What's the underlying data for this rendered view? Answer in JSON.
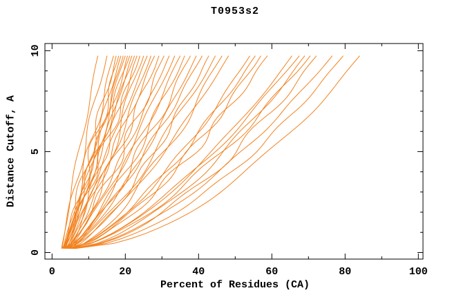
{
  "chart_data": {
    "type": "line",
    "title": "T0953s2",
    "xlabel": "Percent of Residues (CA)",
    "ylabel": "Distance Cutoff, A",
    "x_axis": {
      "min": 0,
      "max": 100,
      "minor_tick_step": 10,
      "major_tick_step": 20,
      "tick_labels": [
        "0",
        "20",
        "40",
        "60",
        "80",
        "100"
      ],
      "frame_min": -1.9,
      "frame_max": 101.9
    },
    "y_axis": {
      "min": 0,
      "max": 10,
      "minor_tick_step": 1,
      "major_tick_step": 5,
      "tick_labels": [
        "0",
        "5",
        "10"
      ],
      "frame_min": -0.33,
      "frame_max": 10.36
    },
    "grid": false,
    "legend": "none",
    "series_color": "#f28220",
    "axis_color": "#000000",
    "background_color": "#ffffff",
    "cutoff_range": [
      0.2,
      9.75
    ],
    "series_note": "each curve = one predicted model; x(cutoff) = start_percent + (top_percent - start_percent) * ((cutoff-0.2)/9.55)^shape_power",
    "series": [
      {
        "start_percent": 2.6,
        "top_percent": 12.5,
        "shape_power": 1.05
      },
      {
        "start_percent": 2.7,
        "top_percent": 15.0,
        "shape_power": 1.1
      },
      {
        "start_percent": 3.0,
        "top_percent": 16.8,
        "shape_power": 0.95
      },
      {
        "start_percent": 3.4,
        "top_percent": 17.5,
        "shape_power": 1.0
      },
      {
        "start_percent": 2.8,
        "top_percent": 18.2,
        "shape_power": 0.9
      },
      {
        "start_percent": 3.8,
        "top_percent": 18.8,
        "shape_power": 1.05
      },
      {
        "start_percent": 3.2,
        "top_percent": 19.4,
        "shape_power": 0.92
      },
      {
        "start_percent": 4.2,
        "top_percent": 20.0,
        "shape_power": 1.0
      },
      {
        "start_percent": 2.9,
        "top_percent": 20.6,
        "shape_power": 0.88
      },
      {
        "start_percent": 3.6,
        "top_percent": 21.2,
        "shape_power": 1.02
      },
      {
        "start_percent": 4.0,
        "top_percent": 21.8,
        "shape_power": 0.94
      },
      {
        "start_percent": 3.1,
        "top_percent": 22.5,
        "shape_power": 1.0
      },
      {
        "start_percent": 4.4,
        "top_percent": 23.2,
        "shape_power": 0.9
      },
      {
        "start_percent": 3.3,
        "top_percent": 24.0,
        "shape_power": 0.97
      },
      {
        "start_percent": 4.8,
        "top_percent": 25.0,
        "shape_power": 0.88
      },
      {
        "start_percent": 3.5,
        "top_percent": 26.0,
        "shape_power": 0.95
      },
      {
        "start_percent": 4.1,
        "top_percent": 27.0,
        "shape_power": 0.85
      },
      {
        "start_percent": 3.7,
        "top_percent": 28.0,
        "shape_power": 0.92
      },
      {
        "start_percent": 4.5,
        "top_percent": 29.2,
        "shape_power": 0.88
      },
      {
        "start_percent": 3.9,
        "top_percent": 30.6,
        "shape_power": 0.82
      },
      {
        "start_percent": 4.6,
        "top_percent": 32.0,
        "shape_power": 0.86
      },
      {
        "start_percent": 3.4,
        "top_percent": 33.5,
        "shape_power": 0.78
      },
      {
        "start_percent": 4.9,
        "top_percent": 35.0,
        "shape_power": 0.82
      },
      {
        "start_percent": 3.6,
        "top_percent": 36.2,
        "shape_power": 0.75
      },
      {
        "start_percent": 5.2,
        "top_percent": 37.8,
        "shape_power": 0.8
      },
      {
        "start_percent": 4.2,
        "top_percent": 39.4,
        "shape_power": 0.74
      },
      {
        "start_percent": 3.8,
        "top_percent": 41.0,
        "shape_power": 0.78
      },
      {
        "start_percent": 5.0,
        "top_percent": 42.8,
        "shape_power": 0.72
      },
      {
        "start_percent": 4.4,
        "top_percent": 44.6,
        "shape_power": 0.76
      },
      {
        "start_percent": 5.5,
        "top_percent": 46.4,
        "shape_power": 0.7
      },
      {
        "start_percent": 4.0,
        "top_percent": 48.2,
        "shape_power": 0.74
      },
      {
        "start_percent": 4.7,
        "top_percent": 54.0,
        "shape_power": 0.68
      },
      {
        "start_percent": 5.3,
        "top_percent": 55.5,
        "shape_power": 0.72
      },
      {
        "start_percent": 4.3,
        "top_percent": 57.0,
        "shape_power": 0.66
      },
      {
        "start_percent": 5.8,
        "top_percent": 58.8,
        "shape_power": 0.7
      },
      {
        "start_percent": 4.6,
        "top_percent": 65.5,
        "shape_power": 0.64
      },
      {
        "start_percent": 5.1,
        "top_percent": 67.5,
        "shape_power": 0.68
      },
      {
        "start_percent": 5.6,
        "top_percent": 69.0,
        "shape_power": 0.62
      },
      {
        "start_percent": 4.8,
        "top_percent": 70.5,
        "shape_power": 0.66
      },
      {
        "start_percent": 6.0,
        "top_percent": 72.2,
        "shape_power": 0.6
      },
      {
        "start_percent": 5.4,
        "top_percent": 76.5,
        "shape_power": 0.62
      },
      {
        "start_percent": 5.9,
        "top_percent": 79.5,
        "shape_power": 0.58
      },
      {
        "start_percent": 6.3,
        "top_percent": 84.0,
        "shape_power": 0.55
      }
    ]
  }
}
